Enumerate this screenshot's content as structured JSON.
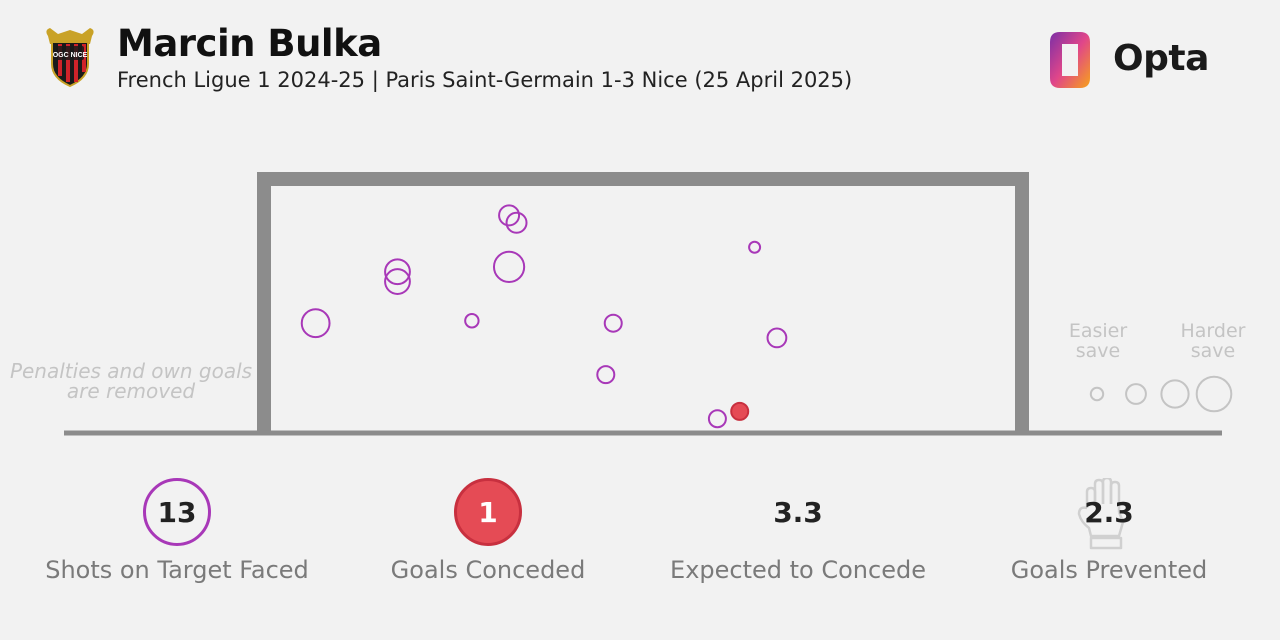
{
  "header": {
    "title": "Marcin Bulka",
    "subtitle": "French Ligue 1 2024-25 | Paris Saint-Germain 1-3 Nice (25 April 2025)",
    "crest_text": "OGC NICE",
    "brand": "Opta"
  },
  "note": {
    "line1": "Penalties and own goals",
    "line2": "are removed"
  },
  "legend": {
    "easier_label": "Easier save",
    "harder_label": "Harder save",
    "sizes": [
      0.1,
      0.2,
      0.3,
      0.4
    ]
  },
  "stats": {
    "shots_value": "13",
    "shots_label": "Shots on Target Faced",
    "goals_value": "1",
    "goals_label": "Goals Conceded",
    "xg_value": "3.3",
    "xg_label": "Expected to Concede",
    "prevented_value": "2.3",
    "prevented_label": "Goals Prevented"
  },
  "colors": {
    "save": "#a838b8",
    "goal": "#e54b55",
    "goal_stroke": "#c8303f",
    "goal_frame": "#8c8c8c",
    "legend": "#c4c4c4",
    "opta_gradient": [
      "#7b2fa6",
      "#e0468a",
      "#f7a21a"
    ],
    "crest_red": "#d0232a",
    "crest_black": "#1a1a1a",
    "crest_gold": "#c9a227"
  },
  "chart_data": {
    "type": "scatter",
    "title": "Marcin Bulka",
    "description_encoding": "",
    "xlim": [
      0,
      1
    ],
    "ylim": [
      0,
      1
    ],
    "series": [
      {
        "points": [
          {
            "x": 0.06,
            "y": 0.44,
            "xg": 0.38,
            "outcome": "save"
          },
          {
            "x": 0.17,
            "y": 0.61,
            "xg": 0.33,
            "outcome": "save"
          },
          {
            "x": 0.17,
            "y": 0.65,
            "xg": 0.33,
            "outcome": "save"
          },
          {
            "x": 0.27,
            "y": 0.45,
            "xg": 0.14,
            "outcome": "save"
          },
          {
            "x": 0.32,
            "y": 0.88,
            "xg": 0.25,
            "outcome": "save"
          },
          {
            "x": 0.33,
            "y": 0.85,
            "xg": 0.25,
            "outcome": "save"
          },
          {
            "x": 0.32,
            "y": 0.67,
            "xg": 0.42,
            "outcome": "save"
          },
          {
            "x": 0.46,
            "y": 0.44,
            "xg": 0.2,
            "outcome": "save"
          },
          {
            "x": 0.45,
            "y": 0.23,
            "xg": 0.2,
            "outcome": "save"
          },
          {
            "x": 0.6,
            "y": 0.05,
            "xg": 0.2,
            "outcome": "save"
          },
          {
            "x": 0.63,
            "y": 0.08,
            "xg": 0.2,
            "outcome": "goal"
          },
          {
            "x": 0.65,
            "y": 0.75,
            "xg": 0.1,
            "outcome": "save"
          },
          {
            "x": 0.68,
            "y": 0.38,
            "xg": 0.23,
            "outcome": "save"
          }
        ]
      }
    ]
  }
}
